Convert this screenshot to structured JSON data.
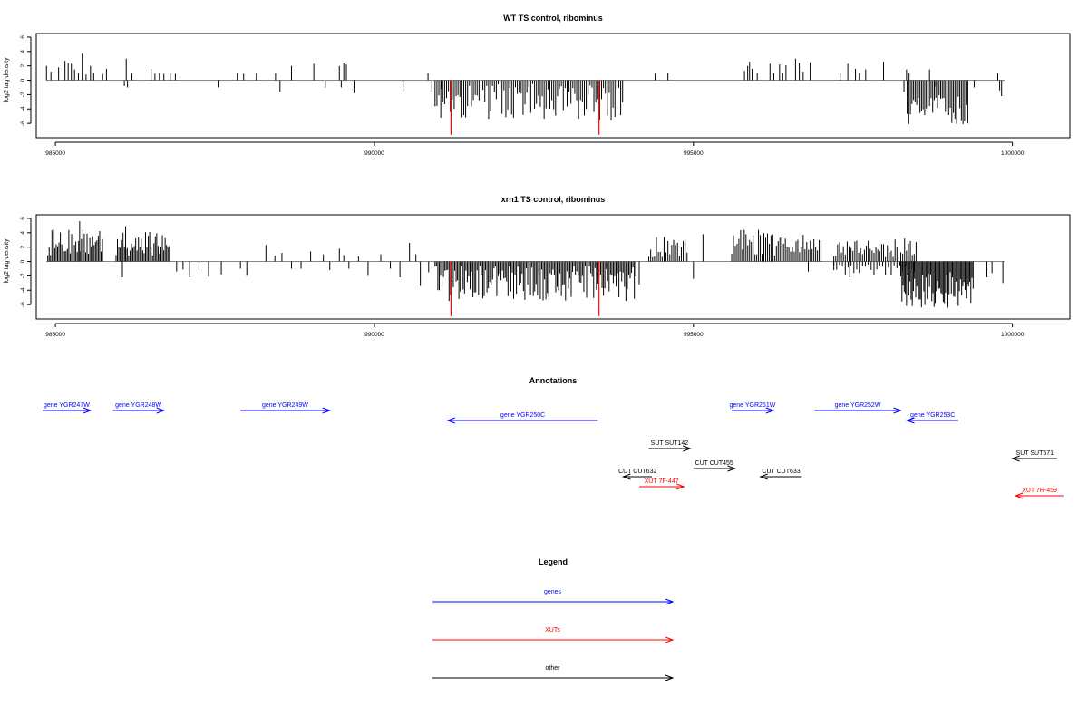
{
  "chart_data": [
    {
      "type": "bar",
      "title": "WT TS control, ribominus",
      "xlabel": "",
      "ylabel": "log2 tag density",
      "xlim": [
        984700,
        1000900
      ],
      "ylim": [
        -8,
        6.5
      ],
      "x_ticks": [
        985000,
        990000,
        995000,
        1000000
      ],
      "y_ticks": [
        -6,
        -4,
        -2,
        0,
        2,
        4,
        6
      ],
      "baseline_color": "#888888",
      "bar_color": "#000000",
      "highlight_color": "#ff0000",
      "highlight_lines": [
        {
          "x": 991200,
          "value": -7.6
        },
        {
          "x": 993520,
          "value": -7.6
        }
      ],
      "peaks": [
        {
          "x": 984860,
          "value": 2.0
        },
        {
          "x": 984930,
          "value": 1.2
        },
        {
          "x": 985050,
          "value": 1.8
        },
        {
          "x": 985150,
          "value": 2.7
        },
        {
          "x": 985200,
          "value": 2.4
        },
        {
          "x": 985250,
          "value": 2.3
        },
        {
          "x": 985300,
          "value": 1.5
        },
        {
          "x": 985360,
          "value": 1.0
        },
        {
          "x": 985420,
          "value": 3.7
        },
        {
          "x": 985480,
          "value": 0.8
        },
        {
          "x": 985550,
          "value": 2.0
        },
        {
          "x": 985600,
          "value": 1.0
        },
        {
          "x": 985740,
          "value": 0.9
        },
        {
          "x": 985800,
          "value": 1.6
        },
        {
          "x": 986080,
          "value": -0.8
        },
        {
          "x": 986110,
          "value": 3.0
        },
        {
          "x": 986130,
          "value": -1.0
        },
        {
          "x": 986200,
          "value": 1.0
        },
        {
          "x": 986500,
          "value": 1.6
        },
        {
          "x": 986560,
          "value": 0.9
        },
        {
          "x": 986630,
          "value": 1.0
        },
        {
          "x": 986700,
          "value": 0.9
        },
        {
          "x": 986800,
          "value": 1.0
        },
        {
          "x": 986880,
          "value": 0.9
        },
        {
          "x": 987550,
          "value": -1.0
        },
        {
          "x": 987850,
          "value": 1.0
        },
        {
          "x": 987950,
          "value": 0.9
        },
        {
          "x": 988150,
          "value": 1.0
        },
        {
          "x": 988450,
          "value": 1.0
        },
        {
          "x": 988520,
          "value": -1.6
        },
        {
          "x": 988700,
          "value": 2.0
        },
        {
          "x": 989050,
          "value": 2.3
        },
        {
          "x": 989230,
          "value": -1.0
        },
        {
          "x": 989450,
          "value": 2.0
        },
        {
          "x": 989480,
          "value": -1.0
        },
        {
          "x": 989520,
          "value": 2.4
        },
        {
          "x": 989560,
          "value": 2.2
        },
        {
          "x": 989680,
          "value": -1.8
        },
        {
          "x": 990450,
          "value": -1.5
        },
        {
          "x": 990840,
          "value": 1.0
        },
        {
          "x": 990900,
          "value": -1.6
        },
        {
          "x": 991050,
          "value": -1.2
        },
        {
          "x": 994400,
          "value": 1.0
        },
        {
          "x": 994600,
          "value": 1.0
        },
        {
          "x": 995800,
          "value": 1.3
        },
        {
          "x": 995850,
          "value": 2.0
        },
        {
          "x": 995880,
          "value": 2.6
        },
        {
          "x": 995920,
          "value": 1.6
        },
        {
          "x": 996000,
          "value": 1.0
        },
        {
          "x": 996200,
          "value": 2.3
        },
        {
          "x": 996260,
          "value": 1.0
        },
        {
          "x": 996350,
          "value": 2.2
        },
        {
          "x": 996400,
          "value": 1.0
        },
        {
          "x": 996450,
          "value": 2.1
        },
        {
          "x": 996600,
          "value": 3.0
        },
        {
          "x": 996660,
          "value": 2.4
        },
        {
          "x": 996720,
          "value": 1.2
        },
        {
          "x": 996830,
          "value": 2.5
        },
        {
          "x": 997300,
          "value": 1.0
        },
        {
          "x": 997420,
          "value": 2.3
        },
        {
          "x": 997540,
          "value": 1.6
        },
        {
          "x": 997600,
          "value": 1.0
        },
        {
          "x": 997700,
          "value": 1.5
        },
        {
          "x": 997980,
          "value": 2.6
        },
        {
          "x": 998300,
          "value": -1.6
        },
        {
          "x": 998340,
          "value": 1.5
        },
        {
          "x": 998380,
          "value": 1.0
        },
        {
          "x": 998700,
          "value": 1.5
        },
        {
          "x": 998780,
          "value": -0.9
        },
        {
          "x": 999400,
          "value": -1.0
        },
        {
          "x": 999770,
          "value": 1.0
        },
        {
          "x": 999800,
          "value": -1.4
        },
        {
          "x": 999830,
          "value": -2.2
        }
      ],
      "dense_regions": [
        {
          "x_start": 990950,
          "x_end": 993900,
          "min": -5.5,
          "max": -0.5,
          "step": 30,
          "sign": -1
        },
        {
          "x_start": 998350,
          "x_end": 999300,
          "min": -6.2,
          "max": -2.0,
          "step": 25,
          "sign": -1
        }
      ]
    },
    {
      "type": "bar",
      "title": "xrn1 TS control, ribominus",
      "xlabel": "",
      "ylabel": "log2 tag density",
      "xlim": [
        984700,
        1000900
      ],
      "ylim": [
        -8,
        6.5
      ],
      "x_ticks": [
        985000,
        990000,
        995000,
        1000000
      ],
      "y_ticks": [
        -6,
        -4,
        -2,
        0,
        2,
        4,
        6
      ],
      "baseline_color": "#888888",
      "bar_color": "#000000",
      "highlight_color": "#ff0000",
      "highlight_lines": [
        {
          "x": 991200,
          "value": -7.6
        },
        {
          "x": 993520,
          "value": -7.6
        }
      ],
      "peaks": [
        {
          "x": 985380,
          "value": 5.6
        },
        {
          "x": 986100,
          "value": 4.9
        },
        {
          "x": 986050,
          "value": -2.2
        },
        {
          "x": 986900,
          "value": -1.4
        },
        {
          "x": 987000,
          "value": -1.1
        },
        {
          "x": 987100,
          "value": -2.2
        },
        {
          "x": 987250,
          "value": -1.2
        },
        {
          "x": 987400,
          "value": -2.1
        },
        {
          "x": 987600,
          "value": -1.8
        },
        {
          "x": 987900,
          "value": -1.0
        },
        {
          "x": 988000,
          "value": -2.0
        },
        {
          "x": 988300,
          "value": 2.3
        },
        {
          "x": 988440,
          "value": 0.8
        },
        {
          "x": 988550,
          "value": 1.2
        },
        {
          "x": 988700,
          "value": -1.0
        },
        {
          "x": 988850,
          "value": -1.0
        },
        {
          "x": 989000,
          "value": 1.4
        },
        {
          "x": 989200,
          "value": 1.0
        },
        {
          "x": 989300,
          "value": -1.2
        },
        {
          "x": 989450,
          "value": 1.8
        },
        {
          "x": 989520,
          "value": 0.9
        },
        {
          "x": 989600,
          "value": -1.0
        },
        {
          "x": 989750,
          "value": 0.7
        },
        {
          "x": 989900,
          "value": -2.0
        },
        {
          "x": 990100,
          "value": 1.0
        },
        {
          "x": 990250,
          "value": -1.0
        },
        {
          "x": 990400,
          "value": -2.2
        },
        {
          "x": 990550,
          "value": 2.6
        },
        {
          "x": 990650,
          "value": 1.0
        },
        {
          "x": 990720,
          "value": -3.4
        },
        {
          "x": 990850,
          "value": -1.5
        },
        {
          "x": 994150,
          "value": -3.2
        },
        {
          "x": 995000,
          "value": -2.4
        },
        {
          "x": 995150,
          "value": 3.8
        },
        {
          "x": 996800,
          "value": -1.4
        },
        {
          "x": 997200,
          "value": -1.2
        },
        {
          "x": 997450,
          "value": -2.2
        },
        {
          "x": 997600,
          "value": -1.6
        },
        {
          "x": 999600,
          "value": -2.2
        },
        {
          "x": 999680,
          "value": -1.6
        },
        {
          "x": 999850,
          "value": -3.0
        }
      ],
      "dense_regions": [
        {
          "x_start": 984880,
          "x_end": 985750,
          "min": 0.8,
          "max": 4.5,
          "step": 22,
          "sign": 1
        },
        {
          "x_start": 985950,
          "x_end": 986800,
          "min": 0.8,
          "max": 4.2,
          "step": 22,
          "sign": 1
        },
        {
          "x_start": 990950,
          "x_end": 994100,
          "min": -5.5,
          "max": -0.5,
          "step": 22,
          "sign": -1
        },
        {
          "x_start": 994300,
          "x_end": 994900,
          "min": 0.5,
          "max": 3.5,
          "step": 30,
          "sign": 1
        },
        {
          "x_start": 995600,
          "x_end": 997000,
          "min": 0.8,
          "max": 4.6,
          "step": 28,
          "sign": 1
        },
        {
          "x_start": 997200,
          "x_end": 998500,
          "min": 0.5,
          "max": 3.2,
          "step": 30,
          "sign": 1
        },
        {
          "x_start": 997200,
          "x_end": 998500,
          "min": -2.0,
          "max": -0.4,
          "step": 45,
          "sign": -1
        },
        {
          "x_start": 998250,
          "x_end": 999400,
          "min": -6.5,
          "max": -1.5,
          "step": 18,
          "sign": -1
        }
      ]
    }
  ],
  "annotations": {
    "title": "Annotations",
    "items": [
      {
        "label": "gene YGR247W",
        "start": 984800,
        "end": 985550,
        "strand": "+",
        "track": 0,
        "color": "#0000ff"
      },
      {
        "label": "gene YGR248W",
        "start": 985900,
        "end": 986700,
        "strand": "+",
        "track": 0,
        "color": "#0000ff"
      },
      {
        "label": "gene YGR249W",
        "start": 987900,
        "end": 989300,
        "strand": "+",
        "track": 0,
        "color": "#0000ff"
      },
      {
        "label": "gene YGR250C",
        "start": 991150,
        "end": 993500,
        "strand": "-",
        "track": 1,
        "color": "#0000ff"
      },
      {
        "label": "gene YGR251W",
        "start": 995600,
        "end": 996250,
        "strand": "+",
        "track": 0,
        "color": "#0000ff"
      },
      {
        "label": "gene YGR252W",
        "start": 996900,
        "end": 998250,
        "strand": "+",
        "track": 0,
        "color": "#0000ff"
      },
      {
        "label": "gene YGR253C",
        "start": 998350,
        "end": 999150,
        "strand": "-",
        "track": 1,
        "color": "#0000ff"
      },
      {
        "label": "SUT SUT142",
        "start": 994300,
        "end": 994950,
        "strand": "+",
        "track": 3,
        "color": "#000000"
      },
      {
        "label": "CUT CUT455",
        "start": 995000,
        "end": 995650,
        "strand": "+",
        "track": 5,
        "color": "#000000"
      },
      {
        "label": "CUT CUT632",
        "start": 993900,
        "end": 994350,
        "strand": "-",
        "track": 6,
        "color": "#000000"
      },
      {
        "label": "CUT CUT633",
        "start": 996050,
        "end": 996700,
        "strand": "-",
        "track": 6,
        "color": "#000000"
      },
      {
        "label": "XUT 7F-447",
        "start": 994150,
        "end": 994850,
        "strand": "+",
        "track": 7,
        "color": "#ff0000"
      },
      {
        "label": "SUT SUT571",
        "start": 1000000,
        "end": 1000700,
        "strand": "-",
        "track": 4,
        "color": "#000000"
      },
      {
        "label": "XUT 7R-459",
        "start": 1000050,
        "end": 1000800,
        "strand": "-",
        "track": 8,
        "color": "#ff0000"
      }
    ]
  },
  "legend": {
    "title": "Legend",
    "items": [
      {
        "label": "genes",
        "color": "#0000ff"
      },
      {
        "label": "XUTs",
        "color": "#ff0000"
      },
      {
        "label": "other",
        "color": "#000000"
      }
    ]
  }
}
